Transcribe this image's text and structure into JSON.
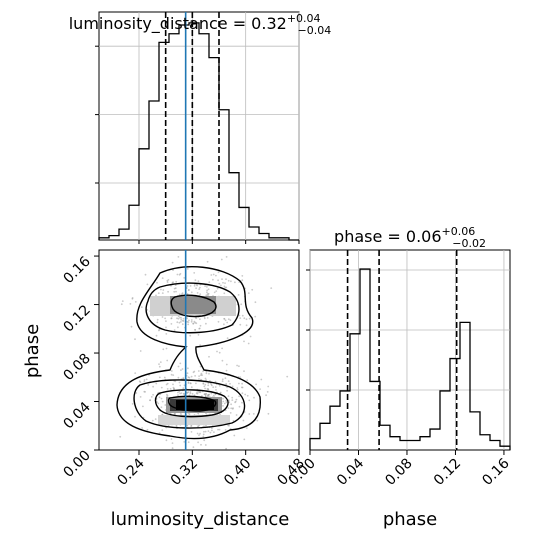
{
  "chart_data": [
    {
      "panel": "luminosity_distance-marginal",
      "type": "histogram",
      "title": {
        "prefix": "luminosity_distance = 0.32",
        "upper": "+0.04",
        "lower": "−0.04"
      },
      "xlim": [
        0.18,
        0.48
      ],
      "ylim": [
        0,
        1
      ],
      "grid": true,
      "bin_edges": [
        0.18,
        0.195,
        0.21,
        0.225,
        0.24,
        0.255,
        0.27,
        0.285,
        0.3,
        0.315,
        0.33,
        0.345,
        0.36,
        0.375,
        0.39,
        0.405,
        0.42,
        0.435,
        0.45,
        0.465,
        0.48
      ],
      "counts": [
        0.01,
        0.02,
        0.05,
        0.16,
        0.42,
        0.64,
        0.91,
        0.95,
        0.99,
        1.0,
        0.95,
        0.84,
        0.6,
        0.31,
        0.15,
        0.06,
        0.03,
        0.01,
        0.01,
        0.0
      ],
      "quantiles": [
        0.28,
        0.32,
        0.36
      ],
      "truth": 0.31
    },
    {
      "panel": "phase-vs-luminosity_distance",
      "type": "2d-density",
      "xlabel": "luminosity_distance",
      "ylabel": "phase",
      "xlim": [
        0.18,
        0.48
      ],
      "ylim": [
        0.0,
        0.165
      ],
      "xticks": [
        "0.24",
        "0.32",
        "0.40",
        "0.48"
      ],
      "yticks": [
        "0.00",
        "0.04",
        "0.08",
        "0.12",
        "0.16"
      ],
      "modes": [
        {
          "x": 0.32,
          "y": 0.036
        },
        {
          "x": 0.32,
          "y": 0.12
        }
      ],
      "truth_x": 0.31
    },
    {
      "panel": "phase-marginal",
      "type": "histogram",
      "title": {
        "prefix": "phase = 0.06",
        "upper": "+0.06",
        "lower": "−0.02"
      },
      "xlabel": "phase",
      "xlim": [
        0.0,
        0.165
      ],
      "ylim": [
        0,
        1
      ],
      "grid": true,
      "xticks": [
        "0.00",
        "0.04",
        "0.08",
        "0.12",
        "0.16"
      ],
      "bin_edges": [
        0.0,
        0.00825,
        0.0165,
        0.02475,
        0.033,
        0.04125,
        0.0495,
        0.05775,
        0.066,
        0.07425,
        0.0825,
        0.09075,
        0.099,
        0.10725,
        0.1155,
        0.12375,
        0.132,
        0.14025,
        0.1485,
        0.15675,
        0.165
      ],
      "counts": [
        0.06,
        0.14,
        0.23,
        0.31,
        0.61,
        0.95,
        0.36,
        0.13,
        0.07,
        0.05,
        0.05,
        0.07,
        0.11,
        0.31,
        0.48,
        0.67,
        0.2,
        0.08,
        0.05,
        0.02
      ],
      "quantiles": [
        0.031,
        0.057,
        0.121
      ]
    }
  ]
}
